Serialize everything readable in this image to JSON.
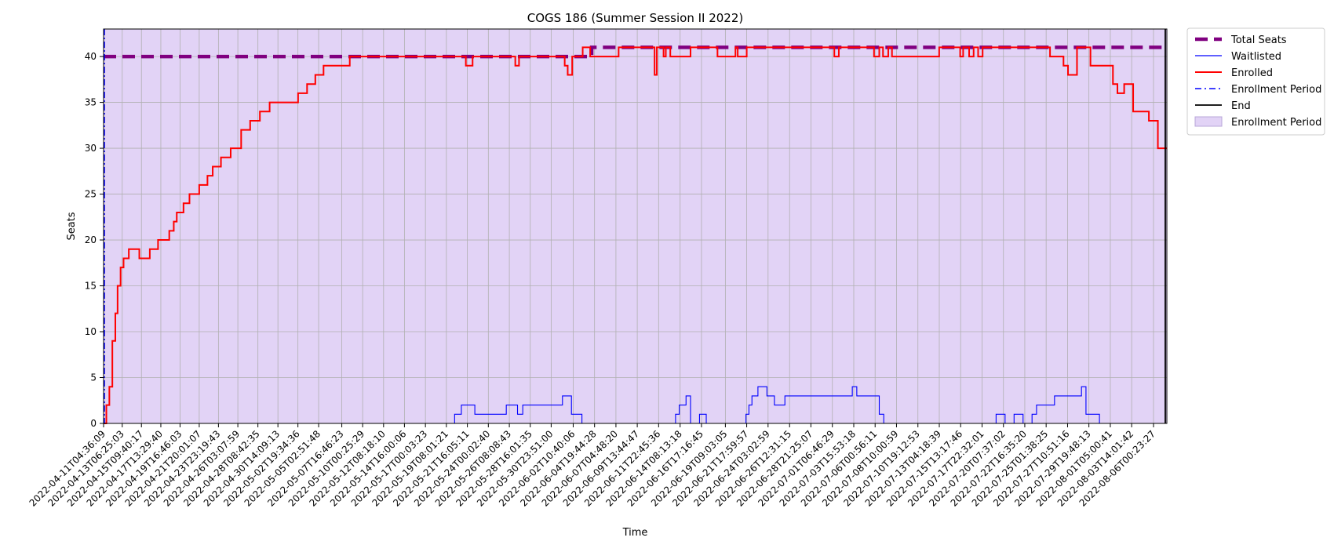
{
  "chart_data": {
    "type": "line",
    "title": "COGS 186 (Summer Session II 2022)",
    "xlabel": "Time",
    "ylabel": "Seats",
    "ylim": [
      0,
      43
    ],
    "yticks": [
      0,
      5,
      10,
      15,
      20,
      25,
      30,
      35,
      40
    ],
    "grid": true,
    "legend_position": "outside-top-right",
    "xlim": [
      "2022-04-11T04:36:09",
      "2022-08-07T12:00:00"
    ],
    "xtick_labels": [
      "2022-04-11T04:36:09",
      "2022-04-13T06:25:03",
      "2022-04-15T09:40:17",
      "2022-04-17T13:29:40",
      "2022-04-19T16:46:03",
      "2022-04-21T20:01:07",
      "2022-04-23T23:19:43",
      "2022-04-26T03:07:59",
      "2022-04-28T08:42:35",
      "2022-04-30T14:09:13",
      "2022-05-02T19:34:36",
      "2022-05-05T02:51:48",
      "2022-05-07T16:46:23",
      "2022-05-10T00:25:29",
      "2022-05-12T08:18:10",
      "2022-05-14T16:00:06",
      "2022-05-17T00:03:23",
      "2022-05-19T08:01:21",
      "2022-05-21T16:05:11",
      "2022-05-24T00:02:40",
      "2022-05-26T08:08:43",
      "2022-05-28T16:01:35",
      "2022-05-30T23:51:00",
      "2022-06-02T10:40:06",
      "2022-06-04T19:44:28",
      "2022-06-07T04:48:20",
      "2022-06-09T13:44:47",
      "2022-06-11T22:45:36",
      "2022-06-14T08:13:18",
      "2022-06-16T17:16:45",
      "2022-06-19T09:03:05",
      "2022-06-21T17:59:57",
      "2022-06-24T03:02:59",
      "2022-06-26T12:31:15",
      "2022-06-28T21:25:07",
      "2022-07-01T06:46:29",
      "2022-07-03T15:53:18",
      "2022-07-06T00:56:11",
      "2022-07-08T10:00:59",
      "2022-07-10T19:12:53",
      "2022-07-13T04:18:39",
      "2022-07-15T13:17:46",
      "2022-07-17T22:32:01",
      "2022-07-20T07:37:02",
      "2022-07-22T16:35:20",
      "2022-07-25T01:38:25",
      "2022-07-27T10:51:16",
      "2022-07-29T19:48:13",
      "2022-08-01T05:00:41",
      "2022-08-03T14:01:42",
      "2022-08-06T00:23:27"
    ],
    "legend": [
      {
        "label": "Total Seats",
        "color": "#800080",
        "style": "thick-dashed"
      },
      {
        "label": "Waitlisted",
        "color": "#0000ff",
        "style": "thin-solid"
      },
      {
        "label": "Enrolled",
        "color": "#ff0000",
        "style": "solid"
      },
      {
        "label": "Enrollment Period",
        "color": "#0000ff",
        "style": "dash-dot"
      },
      {
        "label": "End",
        "color": "#000000",
        "style": "solid"
      },
      {
        "label": "Enrollment Period",
        "color": "#e2d3f6",
        "style": "patch"
      }
    ],
    "enrollment_period_color": "#e2d3f6",
    "series": [
      {
        "name": "Total Seats",
        "color": "#800080",
        "step": true,
        "x": [
          "2022-04-11T04:36:09",
          "2022-06-04T12:00:00",
          "2022-08-07T12:00:00"
        ],
        "values": [
          40,
          41,
          41
        ]
      },
      {
        "name": "Enrolled",
        "color": "#ff0000",
        "step": true,
        "x": [
          "2022-04-11T04:36:09",
          "2022-04-11T12:00:00",
          "2022-04-11T20:00:00",
          "2022-04-12T04:00:00",
          "2022-04-12T12:00:00",
          "2022-04-12T18:00:00",
          "2022-04-13T02:00:00",
          "2022-04-13T10:00:00",
          "2022-04-14T00:00:00",
          "2022-04-14T20:00:00",
          "2022-04-15T04:00:00",
          "2022-04-15T16:00:00",
          "2022-04-16T08:00:00",
          "2022-04-17T06:00:00",
          "2022-04-18T12:00:00",
          "2022-04-19T00:00:00",
          "2022-04-19T08:00:00",
          "2022-04-19T16:00:00",
          "2022-04-20T02:00:00",
          "2022-04-20T18:00:00",
          "2022-04-21T20:00:00",
          "2022-04-22T06:00:00",
          "2022-04-22T18:00:00",
          "2022-04-23T08:00:00",
          "2022-04-24T06:00:00",
          "2022-04-25T08:00:00",
          "2022-04-26T12:00:00",
          "2022-04-27T12:00:00",
          "2022-04-28T02:00:00",
          "2022-04-28T14:00:00",
          "2022-04-29T16:00:00",
          "2022-05-01T00:00:00",
          "2022-05-02T20:00:00",
          "2022-05-03T20:00:00",
          "2022-05-04T18:00:00",
          "2022-05-05T16:00:00",
          "2022-05-07T16:00:00",
          "2022-05-08T14:00:00",
          "2022-05-09T12:00:00",
          "2022-05-21T12:00:00",
          "2022-05-22T06:00:00",
          "2022-05-27T00:00:00",
          "2022-05-27T10:00:00",
          "2022-05-31T12:00:00",
          "2022-06-01T12:00:00",
          "2022-06-01T20:00:00",
          "2022-06-02T08:00:00",
          "2022-06-03T12:00:00",
          "2022-06-04T08:00:00",
          "2022-06-05T12:00:00",
          "2022-06-07T12:00:00",
          "2022-06-11T12:00:00",
          "2022-06-11T18:00:00",
          "2022-06-12T12:00:00",
          "2022-06-12T18:00:00",
          "2022-06-13T06:00:00",
          "2022-06-15T12:00:00",
          "2022-06-17T06:00:00",
          "2022-06-18T12:00:00",
          "2022-06-20T12:00:00",
          "2022-06-20T18:00:00",
          "2022-06-21T18:00:00",
          "2022-06-22T00:00:00",
          "2022-07-01T12:00:00",
          "2022-07-02T00:00:00",
          "2022-07-05T12:00:00",
          "2022-07-05T22:00:00",
          "2022-07-06T12:00:00",
          "2022-07-06T22:00:00",
          "2022-07-07T12:00:00",
          "2022-07-07T22:00:00",
          "2022-07-13T04:00:00",
          "2022-07-14T12:00:00",
          "2022-07-15T12:00:00",
          "2022-07-15T20:00:00",
          "2022-07-16T12:00:00",
          "2022-07-17T00:00:00",
          "2022-07-17T12:00:00",
          "2022-07-18T00:00:00",
          "2022-07-20T12:00:00",
          "2022-07-20T20:00:00",
          "2022-07-21T16:00:00",
          "2022-07-25T12:00:00",
          "2022-07-26T00:00:00",
          "2022-07-27T00:00:00",
          "2022-07-27T12:00:00",
          "2022-07-28T12:00:00",
          "2022-07-28T20:00:00",
          "2022-07-29T12:00:00",
          "2022-07-30T00:00:00",
          "2022-08-01T12:00:00",
          "2022-08-02T00:00:00",
          "2022-08-02T18:00:00",
          "2022-08-03T06:00:00",
          "2022-08-03T18:00:00",
          "2022-08-04T06:00:00",
          "2022-08-05T12:00:00",
          "2022-08-06T12:00:00",
          "2022-08-06T20:00:00"
        ],
        "values": [
          0,
          2,
          4,
          9,
          12,
          15,
          17,
          18,
          19,
          19,
          18,
          18,
          19,
          20,
          21,
          22,
          23,
          23,
          24,
          25,
          26,
          26,
          27,
          28,
          29,
          30,
          32,
          33,
          33,
          34,
          35,
          35,
          36,
          37,
          38,
          39,
          39,
          40,
          40,
          39,
          40,
          39,
          40,
          40,
          39,
          38,
          40,
          41,
          40,
          40,
          41,
          38,
          41,
          40,
          41,
          40,
          41,
          41,
          40,
          41,
          40,
          41,
          41,
          40,
          41,
          41,
          40,
          41,
          40,
          41,
          40,
          41,
          41,
          40,
          41,
          40,
          41,
          40,
          41,
          41,
          41,
          41,
          40,
          40,
          39,
          38,
          41,
          41,
          41,
          39,
          37,
          36,
          37,
          37,
          34,
          34,
          33,
          30,
          30
        ]
      },
      {
        "name": "Waitlisted",
        "color": "#0000ff",
        "step": true,
        "x": [
          "2022-04-11T04:36:09",
          "2022-05-20T06:00:00",
          "2022-05-21T00:00:00",
          "2022-05-22T12:00:00",
          "2022-05-26T00:00:00",
          "2022-05-27T06:00:00",
          "2022-05-27T20:00:00",
          "2022-06-01T06:00:00",
          "2022-06-02T06:00:00",
          "2022-06-03T10:00:00",
          "2022-06-13T20:00:00",
          "2022-06-14T06:00:00",
          "2022-06-15T00:00:00",
          "2022-06-15T12:00:00",
          "2022-06-16T12:00:00",
          "2022-06-17T06:00:00",
          "2022-06-21T16:00:00",
          "2022-06-22T00:00:00",
          "2022-06-22T08:00:00",
          "2022-06-23T00:00:00",
          "2022-06-24T00:00:00",
          "2022-06-24T20:00:00",
          "2022-06-26T00:00:00",
          "2022-06-27T12:00:00",
          "2022-07-01T00:00:00",
          "2022-07-03T12:00:00",
          "2022-07-04T00:00:00",
          "2022-07-04T18:00:00",
          "2022-07-06T12:00:00",
          "2022-07-07T00:00:00",
          "2022-07-07T12:00:00",
          "2022-07-19T00:00:00",
          "2022-07-19T12:00:00",
          "2022-07-20T12:00:00",
          "2022-07-21T12:00:00",
          "2022-07-22T12:00:00",
          "2022-07-23T12:00:00",
          "2022-07-24T00:00:00",
          "2022-07-25T00:00:00",
          "2022-07-26T00:00:00",
          "2022-07-28T12:00:00",
          "2022-07-29T00:00:00",
          "2022-07-29T12:00:00",
          "2022-07-31T00:00:00"
        ],
        "values": [
          0,
          1,
          2,
          1,
          2,
          1,
          2,
          3,
          1,
          0,
          1,
          2,
          3,
          0,
          1,
          0,
          1,
          2,
          3,
          4,
          3,
          2,
          3,
          3,
          3,
          4,
          3,
          3,
          1,
          0,
          0,
          0,
          1,
          0,
          1,
          0,
          1,
          2,
          2,
          3,
          3,
          4,
          1,
          0
        ]
      }
    ],
    "end_marker": "2022-08-07T12:00:00"
  }
}
